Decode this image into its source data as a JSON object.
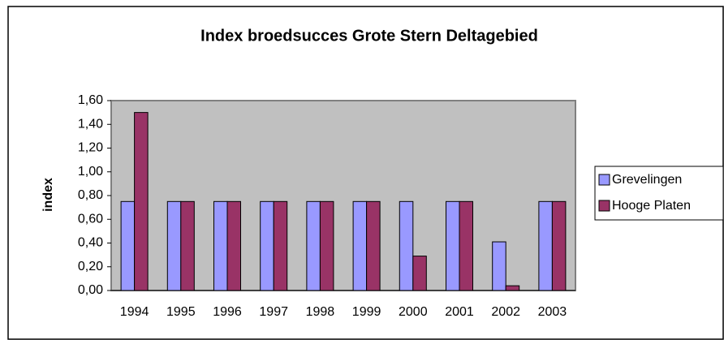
{
  "chart_data": {
    "type": "bar",
    "title": "Index broedsucces Grote Stern Deltagebied",
    "y_label": "index",
    "categories": [
      "1994",
      "1995",
      "1996",
      "1997",
      "1998",
      "1999",
      "2000",
      "2001",
      "2002",
      "2003"
    ],
    "series": [
      {
        "name": "Grevelingen",
        "color": "#9999ff",
        "values": [
          0.75,
          0.75,
          0.75,
          0.75,
          0.75,
          0.75,
          0.75,
          0.75,
          0.41,
          0.75
        ]
      },
      {
        "name": "Hooge Platen",
        "color": "#993366",
        "values": [
          1.5,
          0.75,
          0.75,
          0.75,
          0.75,
          0.75,
          0.29,
          0.75,
          0.04,
          0.75
        ]
      }
    ],
    "ylim": [
      0,
      1.6
    ],
    "yticks": [
      {
        "value": 0,
        "label": "0,00"
      },
      {
        "value": 0.2,
        "label": "0,20"
      },
      {
        "value": 0.4,
        "label": "0,40"
      },
      {
        "value": 0.6,
        "label": "0,60"
      },
      {
        "value": 0.8,
        "label": "0,80"
      },
      {
        "value": 1.0,
        "label": "1,00"
      },
      {
        "value": 1.2,
        "label": "1,20"
      },
      {
        "value": 1.4,
        "label": "1,40"
      },
      {
        "value": 1.6,
        "label": "1,60"
      }
    ],
    "grid": false,
    "legend": "right",
    "plot_background": "#c0c0c0"
  }
}
